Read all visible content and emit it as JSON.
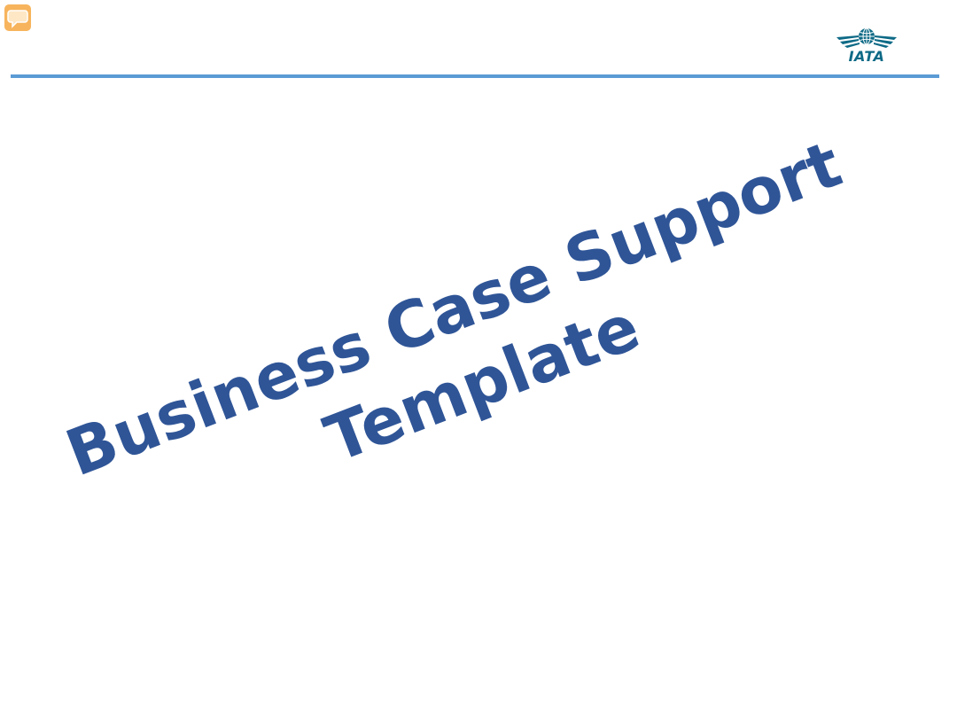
{
  "slide": {
    "title_line_1": "Business Case Support",
    "title_line_2": "Template"
  },
  "logo": {
    "text": "IATA"
  },
  "colors": {
    "title": "#2f5597",
    "divider": "#5b9bd5",
    "logo": "#0e6a86",
    "comment_icon": "#f7b45c"
  },
  "icons": {
    "comment": "speech-bubble-icon",
    "logo": "globe-wings-logo"
  }
}
